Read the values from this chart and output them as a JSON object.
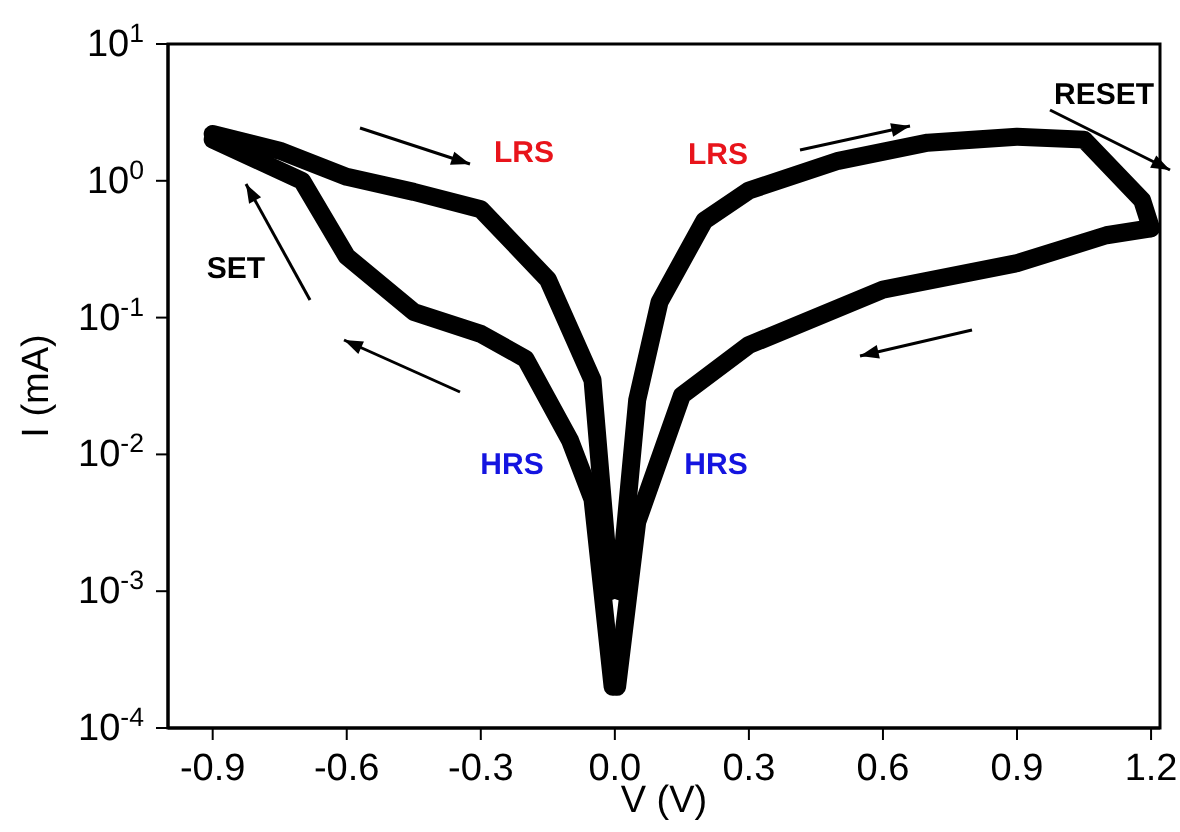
{
  "chart_data": {
    "type": "line",
    "xlabel": "V (V)",
    "ylabel": "I (mA)",
    "log": "y",
    "xlim": [
      -1.0,
      1.22
    ],
    "ylim": [
      0.0001,
      10
    ],
    "xticks": [
      -0.9,
      -0.6,
      -0.3,
      {
        "value": 0,
        "label": "0.0"
      },
      0.3,
      0.6,
      0.9,
      1.2
    ],
    "yticks": [
      {
        "value": 0.0001,
        "label": "10$^{-4}$"
      },
      {
        "value": 0.001,
        "label": "10$^{-3}$"
      },
      {
        "value": 0.01,
        "label": "10$^{-2}$"
      },
      {
        "value": 0.1,
        "label": "10$^{-1}$"
      },
      {
        "value": 1,
        "label": "10$^{0}$"
      },
      {
        "value": 10,
        "label": "10$^{1}$"
      }
    ],
    "grid": false,
    "marker": "none",
    "line_style": "solid",
    "series": [
      {
        "color": "#000000",
        "x": [
          0.01,
          0.05,
          0.1,
          0.2,
          0.3,
          0.5,
          0.7,
          0.9,
          1.05,
          1.18,
          1.2
        ],
        "values": [
          0.001,
          0.025,
          0.13,
          0.51,
          0.85,
          1.4,
          1.9,
          2.1,
          2.0,
          0.72,
          0.45
        ]
      },
      {
        "color": "#000000",
        "x": [
          1.2,
          1.1,
          0.9,
          0.6,
          0.3,
          0.15,
          0.05,
          0.005
        ],
        "values": [
          0.45,
          0.4,
          0.25,
          0.16,
          0.063,
          0.027,
          0.0032,
          0.0002
        ]
      },
      {
        "color": "#000000",
        "x": [
          -0.005,
          -0.05,
          -0.1,
          -0.2,
          -0.3,
          -0.45,
          -0.6,
          -0.7,
          -0.9
        ],
        "values": [
          0.0002,
          0.0047,
          0.0126,
          0.05,
          0.076,
          0.11,
          0.28,
          1.0,
          2.0
        ]
      },
      {
        "color": "#000000",
        "x": [
          -0.9,
          -0.75,
          -0.6,
          -0.45,
          -0.3,
          -0.15,
          -0.05,
          -0.01
        ],
        "values": [
          2.2,
          1.66,
          1.07,
          0.83,
          0.62,
          0.19,
          0.035,
          0.001
        ]
      }
    ],
    "annotations": [
      "LRS",
      "LRS",
      "SET",
      "RESET",
      "HRS",
      "HRS"
    ]
  }
}
